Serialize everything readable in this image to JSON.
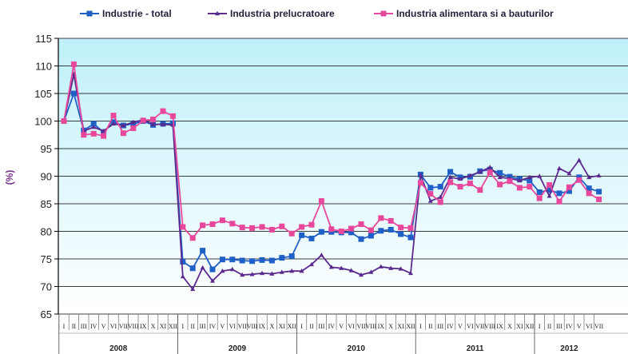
{
  "chart_data": {
    "type": "line",
    "title": "",
    "xlabel": "",
    "ylabel": "(%)",
    "ylim": [
      65,
      115
    ],
    "yticks": [
      65,
      70,
      75,
      80,
      85,
      90,
      95,
      100,
      105,
      110,
      115
    ],
    "grid": true,
    "legend": "top",
    "months": [
      "I",
      "II",
      "III",
      "IV",
      "V",
      "VI",
      "VII",
      "VIII",
      "IX",
      "X",
      "XI",
      "XII",
      "I",
      "II",
      "III",
      "IV",
      "V",
      "VI",
      "VII",
      "VIII",
      "IX",
      "X",
      "XI",
      "XII",
      "I",
      "II",
      "III",
      "IV",
      "V",
      "VI",
      "VII",
      "VIII",
      "IX",
      "X",
      "XI",
      "XII",
      "I",
      "II",
      "III",
      "IV",
      "V",
      "VI",
      "VII",
      "VIII",
      "IX",
      "X",
      "XI",
      "XII",
      "I",
      "II",
      "III",
      "IV",
      "V",
      "VI",
      "VII"
    ],
    "years": [
      {
        "label": "2008",
        "start": 0,
        "count": 12
      },
      {
        "label": "2009",
        "start": 12,
        "count": 12
      },
      {
        "label": "2010",
        "start": 24,
        "count": 12
      },
      {
        "label": "2011",
        "start": 36,
        "count": 12
      },
      {
        "label": "2012",
        "start": 48,
        "count": 7
      }
    ],
    "series": [
      {
        "name": "Industrie - total",
        "color": "#1f5fc8",
        "marker": "square",
        "values": [
          100,
          105,
          98.3,
          99.5,
          98,
          99.8,
          99.2,
          99.5,
          100,
          99.3,
          99.5,
          99.6,
          74.5,
          73.3,
          76.5,
          73.1,
          74.9,
          74.9,
          74.7,
          74.6,
          74.8,
          74.7,
          75.2,
          75.5,
          79.3,
          78.7,
          79.9,
          79.9,
          79.8,
          79.8,
          78.6,
          79.2,
          80.1,
          80.3,
          79.5,
          78.9,
          90.3,
          87.9,
          88.1,
          90.8,
          89.8,
          89.9,
          90.9,
          91.2,
          90.6,
          89.9,
          89.5,
          89.2,
          87.1,
          87.5,
          86.9,
          87.3,
          89.8,
          87.8,
          87.2
        ]
      },
      {
        "name": "Industria prelucratoare",
        "color": "#5b2a8e",
        "marker": "triangle",
        "values": [
          100,
          108.5,
          98.2,
          98.9,
          98.2,
          99.5,
          99.2,
          99.8,
          100.2,
          99.4,
          99.4,
          99.3,
          71.8,
          69.5,
          73.4,
          71.0,
          72.8,
          73.1,
          72.1,
          72.2,
          72.4,
          72.3,
          72.6,
          72.8,
          72.8,
          74.0,
          75.7,
          73.5,
          73.3,
          72.9,
          72.1,
          72.6,
          73.6,
          73.3,
          73.2,
          72.4,
          90.2,
          85.5,
          86.2,
          89.8,
          89.5,
          90.1,
          90.8,
          91.6,
          89.8,
          89.6,
          89.2,
          89.8,
          90.0,
          86.4,
          91.4,
          90.5,
          92.9,
          89.8,
          90.1
        ]
      },
      {
        "name": "Industria alimentara si a  bauturilor",
        "color": "#e8489c",
        "marker": "square",
        "values": [
          100,
          110.3,
          97.5,
          97.7,
          97.3,
          101.0,
          97.8,
          98.7,
          100.1,
          100.3,
          101.8,
          100.9,
          80.8,
          78.8,
          81.1,
          81.3,
          82.0,
          81.4,
          80.7,
          80.6,
          80.8,
          80.3,
          80.9,
          79.6,
          80.8,
          81.2,
          85.5,
          80.4,
          80.0,
          80.5,
          81.3,
          80.2,
          82.4,
          81.9,
          80.7,
          80.6,
          88.8,
          86.8,
          85.3,
          88.9,
          88.1,
          88.7,
          87.5,
          90.7,
          88.5,
          89.1,
          87.9,
          88.1,
          86.0,
          88.4,
          85.4,
          88.0,
          89.3,
          86.9,
          85.8
        ]
      }
    ]
  }
}
